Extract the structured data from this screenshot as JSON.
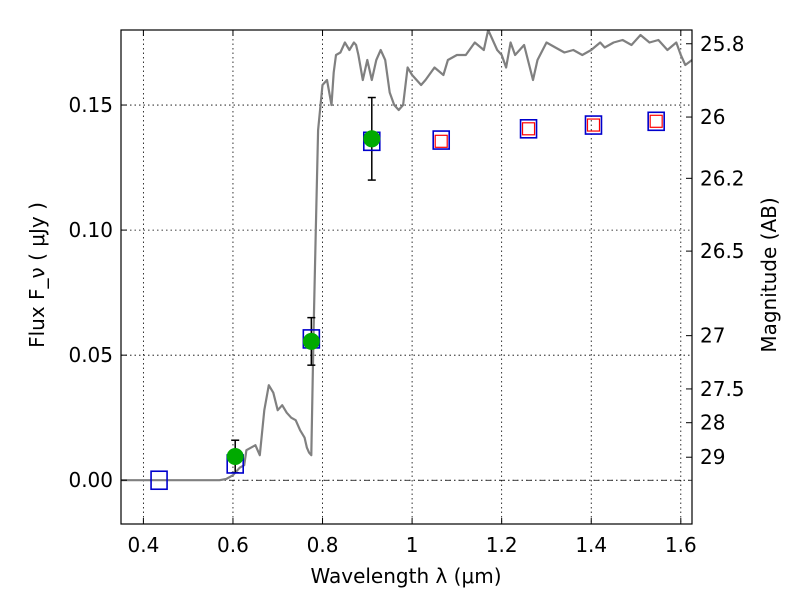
{
  "chart_data": {
    "type": "scatter",
    "xlabel": "Wavelength  λ (μm)",
    "ylabel": "Flux  F_ν  ( μJy )",
    "ylabel_right": "Magnitude (AB)",
    "xlim": [
      0.35,
      1.625
    ],
    "ylim": [
      -0.0175,
      0.18
    ],
    "x_ticks": [
      0.4,
      0.6,
      0.8,
      1.0,
      1.2,
      1.4,
      1.6
    ],
    "x_tick_labels": [
      "0.4",
      "0.6",
      "0.8",
      "1",
      "1.2",
      "1.4",
      "1.6"
    ],
    "y_ticks": [
      0.0,
      0.05,
      0.1,
      0.15
    ],
    "y_tick_labels": [
      "0.00",
      "0.05",
      "0.10",
      "0.15"
    ],
    "right_ticks": [
      {
        "label": "25.8",
        "flux": 0.1745
      },
      {
        "label": "26",
        "flux": 0.1452
      },
      {
        "label": "26.2",
        "flux": 0.1207
      },
      {
        "label": "26.5",
        "flux": 0.0916
      },
      {
        "label": "27",
        "flux": 0.0578
      },
      {
        "label": "27.5",
        "flux": 0.0365
      },
      {
        "label": "28",
        "flux": 0.023
      },
      {
        "label": "29",
        "flux": 0.0092
      }
    ],
    "grid": true,
    "colors": {
      "model": "#808080",
      "obs": "#00aa00",
      "model_box": "#0000cc",
      "pred_box": "#ff0000",
      "errbar": "#000000"
    },
    "model_spectrum": {
      "x": [
        0.35,
        0.45,
        0.55,
        0.57,
        0.585,
        0.6,
        0.615,
        0.625,
        0.63,
        0.64,
        0.65,
        0.66,
        0.67,
        0.68,
        0.69,
        0.7,
        0.71,
        0.72,
        0.73,
        0.74,
        0.75,
        0.76,
        0.765,
        0.77,
        0.775,
        0.78,
        0.785,
        0.79,
        0.8,
        0.81,
        0.82,
        0.825,
        0.83,
        0.84,
        0.85,
        0.86,
        0.87,
        0.875,
        0.88,
        0.89,
        0.9,
        0.91,
        0.92,
        0.93,
        0.94,
        0.95,
        0.96,
        0.97,
        0.98,
        0.99,
        1.0,
        1.01,
        1.02,
        1.03,
        1.05,
        1.07,
        1.08,
        1.1,
        1.12,
        1.14,
        1.16,
        1.17,
        1.18,
        1.19,
        1.2,
        1.21,
        1.22,
        1.23,
        1.25,
        1.27,
        1.28,
        1.3,
        1.32,
        1.34,
        1.36,
        1.38,
        1.4,
        1.42,
        1.43,
        1.45,
        1.47,
        1.49,
        1.51,
        1.53,
        1.55,
        1.57,
        1.59,
        1.6,
        1.61,
        1.625
      ],
      "y": [
        0.0,
        0.0,
        0.0,
        0.0,
        0.0005,
        0.002,
        0.005,
        0.006,
        0.012,
        0.013,
        0.014,
        0.01,
        0.028,
        0.038,
        0.035,
        0.028,
        0.03,
        0.027,
        0.025,
        0.024,
        0.02,
        0.017,
        0.013,
        0.011,
        0.01,
        0.06,
        0.1,
        0.14,
        0.158,
        0.16,
        0.15,
        0.163,
        0.17,
        0.171,
        0.175,
        0.172,
        0.175,
        0.174,
        0.17,
        0.16,
        0.168,
        0.16,
        0.168,
        0.172,
        0.168,
        0.155,
        0.15,
        0.148,
        0.15,
        0.165,
        0.162,
        0.16,
        0.158,
        0.16,
        0.165,
        0.162,
        0.168,
        0.17,
        0.17,
        0.175,
        0.172,
        0.18,
        0.176,
        0.172,
        0.17,
        0.165,
        0.175,
        0.17,
        0.174,
        0.16,
        0.168,
        0.175,
        0.173,
        0.171,
        0.172,
        0.17,
        0.172,
        0.175,
        0.173,
        0.175,
        0.176,
        0.174,
        0.178,
        0.175,
        0.176,
        0.172,
        0.175,
        0.17,
        0.166,
        0.168
      ]
    },
    "observed": [
      {
        "x": 0.605,
        "y": 0.0095,
        "yerr": 0.0065
      },
      {
        "x": 0.775,
        "y": 0.0555,
        "yerr": 0.0095
      },
      {
        "x": 0.91,
        "y": 0.1365,
        "yerr": 0.0165
      }
    ],
    "model_photometry": [
      {
        "x": 0.435,
        "y": 0.0
      },
      {
        "x": 0.605,
        "y": 0.0065
      },
      {
        "x": 0.775,
        "y": 0.0565
      },
      {
        "x": 0.91,
        "y": 0.1355
      },
      {
        "x": 1.065,
        "y": 0.136
      },
      {
        "x": 1.26,
        "y": 0.1405
      },
      {
        "x": 1.405,
        "y": 0.142
      },
      {
        "x": 1.545,
        "y": 0.1435
      }
    ],
    "predicted_photometry": [
      {
        "x": 1.065,
        "y": 0.1355
      },
      {
        "x": 1.26,
        "y": 0.1405
      },
      {
        "x": 1.405,
        "y": 0.142
      },
      {
        "x": 1.545,
        "y": 0.1435
      }
    ]
  }
}
